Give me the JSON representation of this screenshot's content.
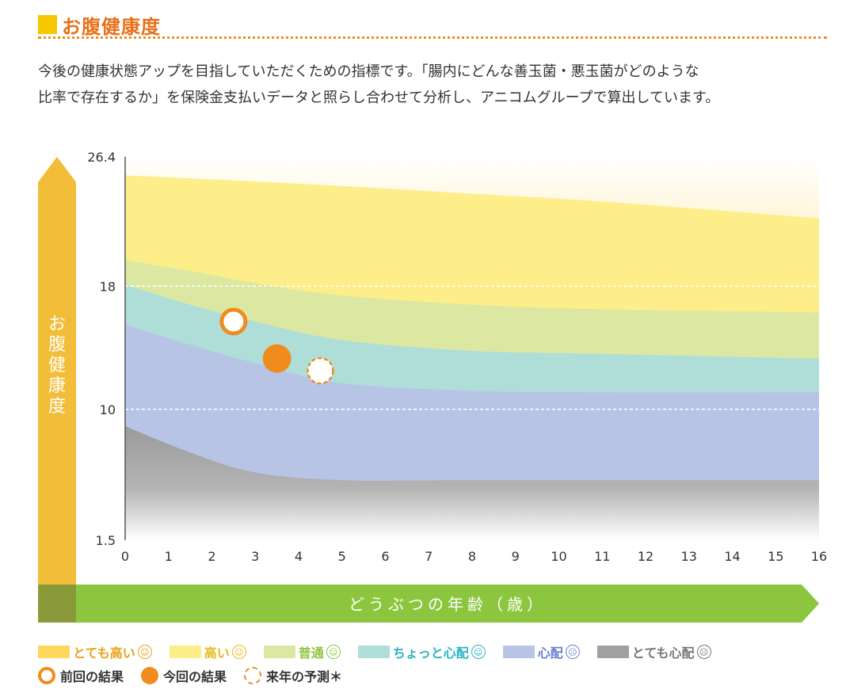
{
  "header": {
    "title": "お腹健康度",
    "description": [
      "今後の健康状態アップを目指していただくための指標です。「腸内にどんな善玉菌・悪玉菌がどのような",
      "比率で存在するか」を保険金支払いデータと照らし合わせて分析し、アニコムグループで算出しています。"
    ]
  },
  "colors": {
    "accent": "#f08c1e",
    "title": "#e8701a",
    "square": "#f5c800",
    "green_bar": "#8cc63f",
    "y_bar": "#f2bd38",
    "band_very_high": "#fdd85c",
    "band_high": "#fdee8a",
    "band_normal": "#dce8a2",
    "band_slight": "#afded9",
    "band_worry": "#b8c4e6",
    "band_very_worry": "#a0a0a0"
  },
  "chart_data": {
    "type": "area",
    "ylabel": "お腹健康度",
    "xlabel": "どうぶつの年齢（歳）",
    "xlim": [
      0,
      16
    ],
    "x_ticks": [
      "0",
      "1",
      "2",
      "3",
      "4",
      "5",
      "6",
      "7",
      "8",
      "9",
      "10",
      "11",
      "12",
      "13",
      "14",
      "15",
      "16"
    ],
    "y_ticks": [
      "1.5",
      "10",
      "18",
      "26.4"
    ],
    "y_tick_values": [
      1.5,
      10,
      18,
      26.4
    ],
    "ylim": [
      1.5,
      26.4
    ],
    "dashed_grid_at": [
      10,
      18
    ],
    "x": [
      0,
      1.5,
      3,
      5,
      8,
      11,
      16
    ],
    "band_upper_bounds": [
      {
        "name": "とても高い",
        "color_key": "band_very_high",
        "values": [
          26.4,
          26.4,
          26.4,
          26.4,
          26.4,
          26.4,
          26.4
        ]
      },
      {
        "name": "高い",
        "color_key": "band_high",
        "values": [
          25.2,
          25.0,
          24.8,
          24.5,
          24.0,
          23.5,
          22.4
        ]
      },
      {
        "name": "普通",
        "color_key": "band_normal",
        "values": [
          19.7,
          19.0,
          18.2,
          17.4,
          16.8,
          16.5,
          16.3
        ]
      },
      {
        "name": "ちょっと心配",
        "color_key": "band_slight",
        "values": [
          18.1,
          16.8,
          15.7,
          14.5,
          13.8,
          13.6,
          13.3
        ]
      },
      {
        "name": "心配",
        "color_key": "band_worry",
        "values": [
          15.5,
          14.2,
          13.0,
          11.7,
          11.2,
          11.1,
          11.1
        ]
      },
      {
        "name": "とても心配",
        "color_key": "band_very_worry",
        "values": [
          8.9,
          7.2,
          5.9,
          5.4,
          5.4,
          5.4,
          5.4
        ]
      }
    ],
    "points": [
      {
        "label": "前回の結果",
        "style": "hollow",
        "x": 2.5,
        "y": 15.7
      },
      {
        "label": "今回の結果",
        "style": "filled",
        "x": 3.5,
        "y": 13.3
      },
      {
        "label": "来年の予測",
        "style": "dashed",
        "x": 4.5,
        "y": 12.5
      }
    ]
  },
  "legend": {
    "bands": [
      {
        "label": "とても高い",
        "color_key": "band_very_high",
        "face_color": "#e8a21a",
        "face": "☺"
      },
      {
        "label": "高い",
        "color_key": "band_high",
        "face_color": "#e8b91a",
        "face": "☺"
      },
      {
        "label": "普通",
        "color_key": "band_normal",
        "face_color": "#8cc63f",
        "face": "☺"
      },
      {
        "label": "ちょっと心配",
        "color_key": "band_slight",
        "face_color": "#2bb3c4",
        "face": "☺"
      },
      {
        "label": "心配",
        "color_key": "band_worry",
        "face_color": "#6b7fd1",
        "face": "☹"
      },
      {
        "label": "とても心配",
        "color_key": "band_very_worry",
        "face_color": "#777777",
        "face": "☹"
      }
    ],
    "markers": [
      {
        "label": "前回の結果",
        "kind": "prev"
      },
      {
        "label": "今回の結果",
        "kind": "curr"
      },
      {
        "label": "来年の予測＊",
        "kind": "next"
      }
    ]
  }
}
